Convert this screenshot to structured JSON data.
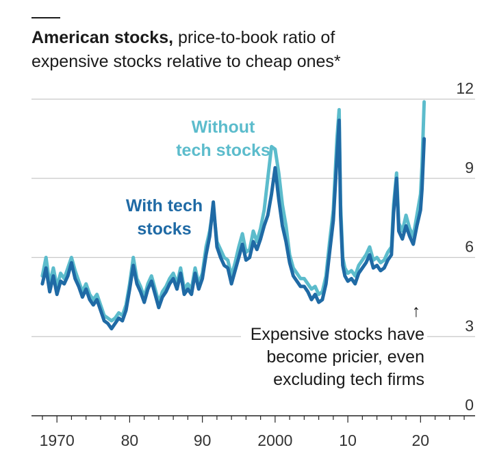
{
  "chart_data": {
    "type": "line",
    "title": "American stocks,",
    "subtitle_line1": "price-to-book ratio of",
    "subtitle_line2": "expensive stocks relative to cheap ones*",
    "xlabel": "",
    "ylabel": "",
    "xlim": [
      1966.5,
      2027.5
    ],
    "ylim": [
      0,
      12
    ],
    "yticks": [
      0,
      3,
      6,
      9,
      12
    ],
    "ytick_labels": [
      "0",
      "3",
      "6",
      "9",
      "12"
    ],
    "xticks": [
      1970,
      1980,
      1990,
      2000,
      2010,
      2020
    ],
    "xtick_labels": [
      "1970",
      "80",
      "90",
      "2000",
      "10",
      "20"
    ],
    "grid": true,
    "colors": {
      "without_tech": "#5cbccc",
      "with_tech": "#1f6aa5",
      "gridline": "#c8c8c8",
      "axis": "#222222"
    },
    "series": [
      {
        "key": "without_tech",
        "name": "Without tech stocks",
        "x": [
          1968.0,
          1968.5,
          1969.0,
          1969.5,
          1970.0,
          1970.5,
          1971.0,
          1971.5,
          1972.0,
          1972.5,
          1973.0,
          1973.5,
          1974.0,
          1974.5,
          1975.0,
          1975.5,
          1976.0,
          1976.5,
          1977.0,
          1977.5,
          1978.0,
          1978.5,
          1979.0,
          1979.5,
          1980.0,
          1980.5,
          1981.0,
          1981.5,
          1982.0,
          1982.5,
          1983.0,
          1983.5,
          1984.0,
          1984.5,
          1985.0,
          1985.5,
          1986.0,
          1986.5,
          1987.0,
          1987.5,
          1988.0,
          1988.5,
          1989.0,
          1989.5,
          1990.0,
          1990.5,
          1991.0,
          1991.5,
          1992.0,
          1992.5,
          1993.0,
          1993.5,
          1994.0,
          1994.5,
          1995.0,
          1995.5,
          1996.0,
          1996.5,
          1997.0,
          1997.5,
          1998.0,
          1998.5,
          1999.0,
          1999.5,
          2000.0,
          2000.5,
          2001.0,
          2001.5,
          2002.0,
          2002.5,
          2003.0,
          2003.5,
          2004.0,
          2004.5,
          2005.0,
          2005.5,
          2006.0,
          2006.5,
          2007.0,
          2007.5,
          2008.0,
          2008.5,
          2008.8,
          2009.0,
          2009.3,
          2009.6,
          2010.0,
          2010.5,
          2011.0,
          2011.5,
          2012.0,
          2012.5,
          2013.0,
          2013.5,
          2014.0,
          2014.5,
          2015.0,
          2015.5,
          2016.0,
          2016.3,
          2016.7,
          2017.0,
          2017.5,
          2018.0,
          2018.5,
          2019.0,
          2019.5,
          2020.0,
          2020.2,
          2020.5
        ],
        "y": [
          5.3,
          6.0,
          5.0,
          5.6,
          4.9,
          5.4,
          5.2,
          5.6,
          6.0,
          5.5,
          5.1,
          4.7,
          5.0,
          4.6,
          4.4,
          4.6,
          4.2,
          3.8,
          3.7,
          3.6,
          3.7,
          3.9,
          3.8,
          4.2,
          5.0,
          6.0,
          5.2,
          4.9,
          4.5,
          5.0,
          5.3,
          4.8,
          4.3,
          4.7,
          4.9,
          5.2,
          5.4,
          5.0,
          5.6,
          4.8,
          5.0,
          4.8,
          5.6,
          5.0,
          5.4,
          6.4,
          7.0,
          7.9,
          6.6,
          6.3,
          6.0,
          5.9,
          5.3,
          5.8,
          6.4,
          6.9,
          6.2,
          6.3,
          7.0,
          6.6,
          7.1,
          7.8,
          9.0,
          10.2,
          10.1,
          9.2,
          8.0,
          7.2,
          6.1,
          5.6,
          5.4,
          5.2,
          5.2,
          5.0,
          4.8,
          4.9,
          4.6,
          4.7,
          5.3,
          6.6,
          7.8,
          10.5,
          11.6,
          8.0,
          6.0,
          5.6,
          5.4,
          5.5,
          5.3,
          5.7,
          5.9,
          6.1,
          6.4,
          5.9,
          6.0,
          5.8,
          5.9,
          6.2,
          6.4,
          8.0,
          9.2,
          7.3,
          7.0,
          7.6,
          7.1,
          6.8,
          7.6,
          8.4,
          9.5,
          11.9
        ]
      },
      {
        "key": "with_tech",
        "name": "With tech stocks",
        "x": [
          1968.0,
          1968.5,
          1969.0,
          1969.5,
          1970.0,
          1970.5,
          1971.0,
          1971.5,
          1972.0,
          1972.5,
          1973.0,
          1973.5,
          1974.0,
          1974.5,
          1975.0,
          1975.5,
          1976.0,
          1976.5,
          1977.0,
          1977.5,
          1978.0,
          1978.5,
          1979.0,
          1979.5,
          1980.0,
          1980.5,
          1981.0,
          1981.5,
          1982.0,
          1982.5,
          1983.0,
          1983.5,
          1984.0,
          1984.5,
          1985.0,
          1985.5,
          1986.0,
          1986.5,
          1987.0,
          1987.5,
          1988.0,
          1988.5,
          1989.0,
          1989.5,
          1990.0,
          1990.5,
          1991.0,
          1991.5,
          1992.0,
          1992.5,
          1993.0,
          1993.5,
          1994.0,
          1994.5,
          1995.0,
          1995.5,
          1996.0,
          1996.5,
          1997.0,
          1997.5,
          1998.0,
          1998.5,
          1999.0,
          1999.5,
          2000.0,
          2000.5,
          2001.0,
          2001.5,
          2002.0,
          2002.5,
          2003.0,
          2003.5,
          2004.0,
          2004.5,
          2005.0,
          2005.5,
          2006.0,
          2006.5,
          2007.0,
          2007.5,
          2008.0,
          2008.5,
          2008.8,
          2009.0,
          2009.3,
          2009.6,
          2010.0,
          2010.5,
          2011.0,
          2011.5,
          2012.0,
          2012.5,
          2013.0,
          2013.5,
          2014.0,
          2014.5,
          2015.0,
          2015.5,
          2016.0,
          2016.3,
          2016.7,
          2017.0,
          2017.5,
          2018.0,
          2018.5,
          2019.0,
          2019.5,
          2020.0,
          2020.2,
          2020.5
        ],
        "y": [
          5.0,
          5.6,
          4.7,
          5.3,
          4.6,
          5.1,
          5.0,
          5.3,
          5.8,
          5.2,
          4.9,
          4.5,
          4.8,
          4.4,
          4.2,
          4.4,
          4.0,
          3.6,
          3.5,
          3.3,
          3.5,
          3.7,
          3.6,
          4.0,
          4.8,
          5.7,
          5.0,
          4.7,
          4.3,
          4.8,
          5.1,
          4.6,
          4.1,
          4.5,
          4.7,
          5.0,
          5.2,
          4.8,
          5.4,
          4.6,
          4.8,
          4.6,
          5.4,
          4.8,
          5.2,
          6.1,
          6.8,
          8.1,
          6.4,
          6.0,
          5.7,
          5.6,
          5.0,
          5.5,
          6.0,
          6.5,
          5.9,
          6.0,
          6.6,
          6.3,
          6.7,
          7.2,
          7.6,
          8.4,
          9.4,
          8.2,
          7.2,
          6.6,
          5.8,
          5.3,
          5.1,
          4.9,
          4.9,
          4.7,
          4.4,
          4.6,
          4.3,
          4.4,
          5.0,
          6.2,
          7.4,
          9.8,
          11.2,
          7.6,
          5.7,
          5.3,
          5.1,
          5.2,
          5.0,
          5.4,
          5.6,
          5.8,
          6.1,
          5.6,
          5.7,
          5.5,
          5.6,
          5.9,
          6.1,
          7.7,
          9.0,
          7.0,
          6.7,
          7.2,
          6.8,
          6.5,
          7.2,
          7.8,
          8.6,
          10.5
        ]
      }
    ],
    "annotations": {
      "without_line1": "Without",
      "without_line2": "tech stocks",
      "with_line1": "With tech",
      "with_line2": "stocks",
      "note_line1": "Expensive stocks have",
      "note_line2": "become pricier, even",
      "note_line3": "excluding tech firms",
      "arrow": "↑"
    }
  }
}
